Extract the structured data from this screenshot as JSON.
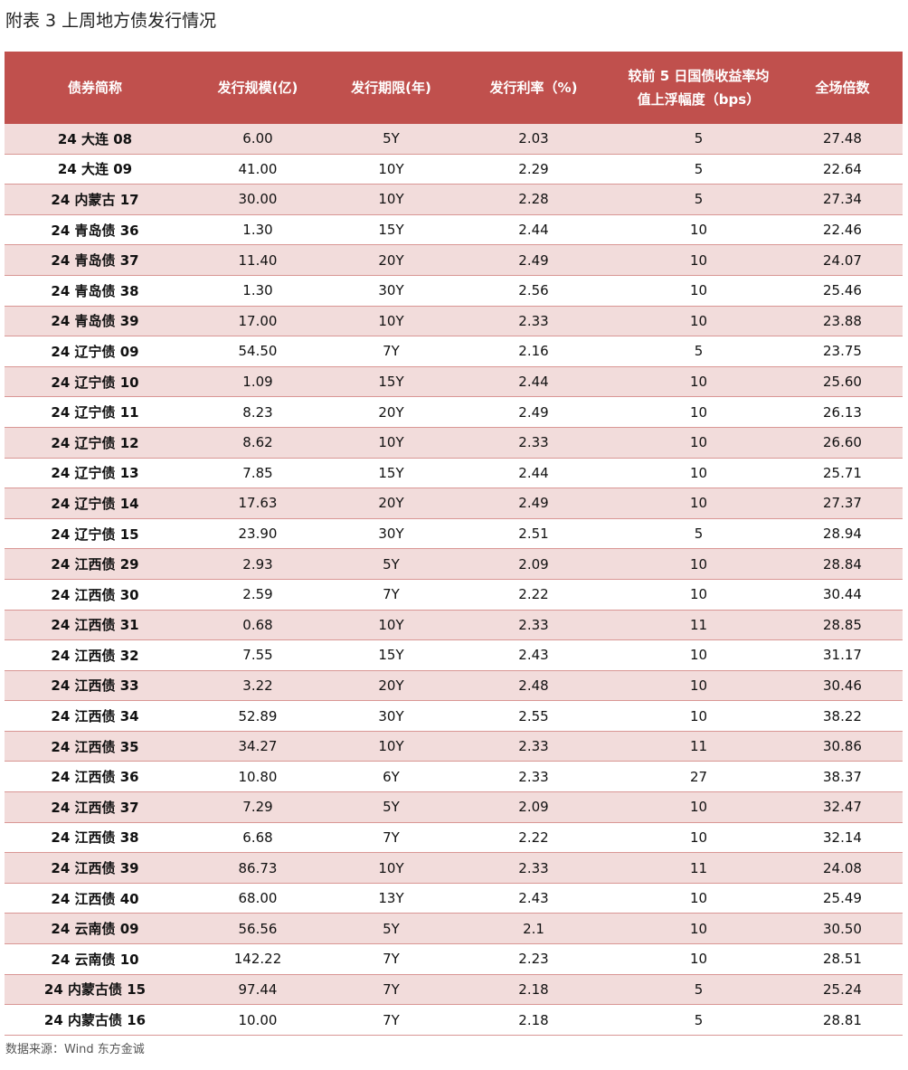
{
  "header": {
    "title": "附表 3  上周地方债发行情况"
  },
  "table": {
    "header": [
      "债券简称",
      "发行规模(亿)",
      "发行期限(年)",
      "发行利率（%)",
      "较前 5 日国债收益率均值上浮幅度（bps）",
      "全场倍数"
    ],
    "rows": [
      [
        "24 大连 08",
        "6.00",
        "5Y",
        "2.03",
        "5",
        "27.48"
      ],
      [
        "24 大连 09",
        "41.00",
        "10Y",
        "2.29",
        "5",
        "22.64"
      ],
      [
        "24 内蒙古 17",
        "30.00",
        "10Y",
        "2.28",
        "5",
        "27.34"
      ],
      [
        "24 青岛债 36",
        "1.30",
        "15Y",
        "2.44",
        "10",
        "22.46"
      ],
      [
        "24 青岛债 37",
        "11.40",
        "20Y",
        "2.49",
        "10",
        "24.07"
      ],
      [
        "24 青岛债 38",
        "1.30",
        "30Y",
        "2.56",
        "10",
        "25.46"
      ],
      [
        "24 青岛债 39",
        "17.00",
        "10Y",
        "2.33",
        "10",
        "23.88"
      ],
      [
        "24 辽宁债 09",
        "54.50",
        "7Y",
        "2.16",
        "5",
        "23.75"
      ],
      [
        "24 辽宁债 10",
        "1.09",
        "15Y",
        "2.44",
        "10",
        "25.60"
      ],
      [
        "24 辽宁债 11",
        "8.23",
        "20Y",
        "2.49",
        "10",
        "26.13"
      ],
      [
        "24 辽宁债 12",
        "8.62",
        "10Y",
        "2.33",
        "10",
        "26.60"
      ],
      [
        "24 辽宁债 13",
        "7.85",
        "15Y",
        "2.44",
        "10",
        "25.71"
      ],
      [
        "24 辽宁债 14",
        "17.63",
        "20Y",
        "2.49",
        "10",
        "27.37"
      ],
      [
        "24 辽宁债 15",
        "23.90",
        "30Y",
        "2.51",
        "5",
        "28.94"
      ],
      [
        "24 江西债 29",
        "2.93",
        "5Y",
        "2.09",
        "10",
        "28.84"
      ],
      [
        "24 江西债 30",
        "2.59",
        "7Y",
        "2.22",
        "10",
        "30.44"
      ],
      [
        "24 江西债 31",
        "0.68",
        "10Y",
        "2.33",
        "11",
        "28.85"
      ],
      [
        "24 江西债 32",
        "7.55",
        "15Y",
        "2.43",
        "10",
        "31.17"
      ],
      [
        "24 江西债 33",
        "3.22",
        "20Y",
        "2.48",
        "10",
        "30.46"
      ],
      [
        "24 江西债 34",
        "52.89",
        "30Y",
        "2.55",
        "10",
        "38.22"
      ],
      [
        "24 江西债 35",
        "34.27",
        "10Y",
        "2.33",
        "11",
        "30.86"
      ],
      [
        "24 江西债 36",
        "10.80",
        "6Y",
        "2.33",
        "27",
        "38.37"
      ],
      [
        "24 江西债 37",
        "7.29",
        "5Y",
        "2.09",
        "10",
        "32.47"
      ],
      [
        "24 江西债 38",
        "6.68",
        "7Y",
        "2.22",
        "10",
        "32.14"
      ],
      [
        "24 江西债 39",
        "86.73",
        "10Y",
        "2.33",
        "11",
        "24.08"
      ],
      [
        "24 江西债 40",
        "68.00",
        "13Y",
        "2.43",
        "10",
        "25.49"
      ],
      [
        "24 云南债 09",
        "56.56",
        "5Y",
        "2.1",
        "10",
        "30.50"
      ],
      [
        "24 云南债 10",
        "142.22",
        "7Y",
        "2.23",
        "10",
        "28.51"
      ],
      [
        "24 内蒙古债 15",
        "97.44",
        "7Y",
        "2.18",
        "5",
        "25.24"
      ],
      [
        "24 内蒙古债 16",
        "10.00",
        "7Y",
        "2.18",
        "5",
        "28.81"
      ]
    ]
  },
  "footer": {
    "source": "数据来源：Wind 东方金诚"
  }
}
